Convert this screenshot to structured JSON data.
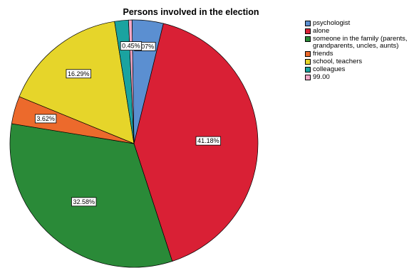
{
  "chart_data": {
    "type": "pie",
    "title": "Persons involved in the election",
    "start_angle_deg": -0.9,
    "direction": "clockwise",
    "legend_position": "right",
    "slices": [
      {
        "label": "psychologist",
        "value": 4.07,
        "display": "4.07%",
        "color": "#5b8fd1"
      },
      {
        "label": "alone",
        "value": 41.18,
        "display": "41.18%",
        "color": "#d92035"
      },
      {
        "label": "someone in the family (parents, grandparents, uncles, aunts)",
        "value": 32.58,
        "display": "32.58%",
        "color": "#2a8a38"
      },
      {
        "label": "friends",
        "value": 3.62,
        "display": "3.62%",
        "color": "#ec6a2c"
      },
      {
        "label": "school, teachers",
        "value": 16.29,
        "display": "16.29%",
        "color": "#e6d52a"
      },
      {
        "label": "colleagues",
        "value": 1.81,
        "display": "",
        "color": "#1aa3a0"
      },
      {
        "label": "99.00",
        "value": 0.45,
        "display": "0.45%",
        "color": "#f4a8c8"
      }
    ]
  }
}
